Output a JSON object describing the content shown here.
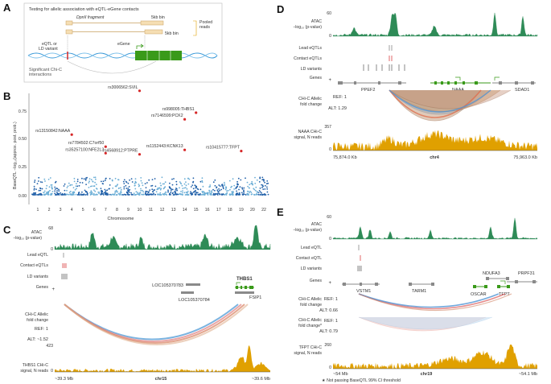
{
  "colors": {
    "atac": "#2e8b57",
    "red": "#d62728",
    "orange": "#e0a000",
    "blue": "#3a8fd9",
    "gene_grey": "#8a8a8a",
    "gene_green": "#3a9a1a",
    "dark_blue": "#1f5fa8",
    "light_blue": "#6baed6"
  },
  "panels": {
    "A": {
      "letter": "A",
      "title": "Testing for allelic association with eQTL-eGene contacts",
      "dpnii": "DpnII fragment",
      "bin5": "5kb bin",
      "bin5b": "5kb bin",
      "pooled": [
        "Pooled",
        "reads"
      ],
      "eqtl": [
        "eQTL or",
        "LD variant"
      ],
      "egene": "eGene",
      "sig": [
        "Significant Chi-C",
        "interactions"
      ]
    },
    "B": {
      "letter": "B",
      "ylabel": "BaseQTL −log₁₀(approx. post. prob.)",
      "xlabel": "Chromosome",
      "yticks": [
        "0.75",
        "0.50",
        "0.25",
        "0.00"
      ],
      "chromosomes": [
        "1",
        "2",
        "3",
        "4",
        "5",
        "6",
        "7",
        "8",
        "9",
        "10",
        "11",
        "12",
        "13",
        "14",
        "15",
        "16",
        "17",
        "18",
        "19",
        "20",
        "22"
      ],
      "hits": [
        {
          "label": "rs3006562:SVIL",
          "chr": "10",
          "value": 0.95
        },
        {
          "label": "rs998005:THBS1",
          "chr": "15",
          "value": 0.75
        },
        {
          "label": "rs7146599:PCK2",
          "chr": "14",
          "value": 0.69
        },
        {
          "label": "rs13150842:NAAA",
          "chr": "4",
          "value": 0.55
        },
        {
          "label": "rs7784502:C7orf50",
          "chr": "7",
          "value": 0.44
        },
        {
          "label": "rs1152443:KCNK13",
          "chr": "14",
          "value": 0.41
        },
        {
          "label": "rs10415777:TFPT",
          "chr": "19",
          "value": 0.4
        },
        {
          "label": "rs35257100:NFE2L3",
          "chr": "7",
          "value": 0.38
        },
        {
          "label": "rs4568912:PTPRE",
          "chr": "10",
          "value": 0.37
        }
      ]
    },
    "C": {
      "letter": "C",
      "atac_label": [
        "ATAC",
        "−log₁₀ (p-value)"
      ],
      "atac_max": "68",
      "atac_min": "0",
      "lead": "Lead eQTL",
      "contact": "Contact eQTLs",
      "ld": "LD variants",
      "genes": "Genes",
      "genes_sign": "+",
      "gene_names": [
        "LOC105370783",
        "LOC105370784",
        "THBS1",
        "FSIP1"
      ],
      "fold_label": [
        "CHi-C Allelic",
        "fold change"
      ],
      "ref": "REF: 1",
      "alt": "ALT: ~1.52",
      "signal_label": [
        "THBS1 CHi-C",
        "signal, N reads"
      ],
      "signal_max": "423",
      "signal_min": "0",
      "axis_left": "~39.3 Mb",
      "axis_chr": "chr15",
      "axis_right": "~39.6 Mb"
    },
    "D": {
      "letter": "D",
      "atac_label": [
        "ATAC",
        "−log₁₀ (p-value)"
      ],
      "atac_max": "60",
      "atac_min": "0",
      "lead": "Lead eQTLs",
      "contact": "Contact eQTLs",
      "ld": "LD variants",
      "genes": "Genes",
      "genes_sign": "+",
      "gene_names": [
        "PPEF2",
        "NAAA",
        "SDAD1"
      ],
      "fold_label": [
        "CHi-C Allelic",
        "fold change"
      ],
      "ref": "REF: 1",
      "alt": "ALT: 1.29",
      "signal_label": [
        "NAAA CHi-C",
        "signal, N reads"
      ],
      "signal_max": "357",
      "signal_min": "0",
      "axis_left": "75,874.0 Kb",
      "axis_chr": "chr4",
      "axis_right": "75,963.0 Kb"
    },
    "E": {
      "letter": "E",
      "atac_label": [
        "ATAC",
        "−log₁₀ (p-value)"
      ],
      "atac_max": "60",
      "atac_min": "0",
      "lead": "Lead eQTL",
      "contact": "Contact eQTL",
      "ld": "LD variants",
      "genes": "Genes",
      "genes_sign": "+",
      "gene_names": [
        "NDUFA3",
        "PRPF31",
        "VSTM1",
        "TARM1",
        "OSCAR",
        "TFPT"
      ],
      "fold1_label": [
        "CHi-C Allelic",
        "fold change"
      ],
      "ref1": "REF: 1",
      "alt1": "ALT: 0.66",
      "fold2_label": [
        "CHi-C Allelic",
        "fold change*"
      ],
      "ref2": "REF: 1",
      "alt2": "ALT: 0.79",
      "signal_label": [
        "TFPT CHi-C",
        "signal, N reads"
      ],
      "signal_max": "260",
      "signal_min": "0",
      "axis_left": "~54 Mb",
      "axis_chr": "chr19",
      "axis_right": "~54.1 Mb",
      "footnote": "★ Not passing BaseQTL 99% CI threshold"
    }
  }
}
